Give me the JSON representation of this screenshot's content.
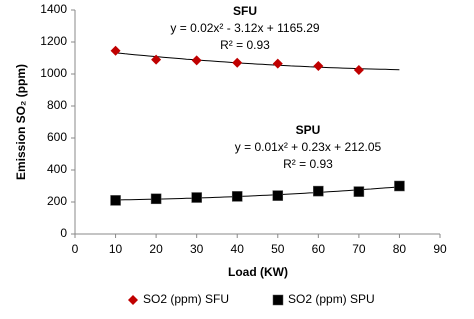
{
  "chart_data": {
    "type": "scatter",
    "x_label": "Load (KW)",
    "y_label": "Emission SO₂ (ppm)",
    "xlim": [
      0,
      90
    ],
    "xticks": [
      0,
      10,
      20,
      30,
      40,
      50,
      60,
      70,
      80,
      90
    ],
    "ylim": [
      0,
      1400
    ],
    "yticks": [
      0,
      200,
      400,
      600,
      800,
      1000,
      1200,
      1400
    ],
    "grid": false,
    "trendline": "poly2",
    "legend": "bottom",
    "series": [
      {
        "name": "SO2 (ppm) SFU",
        "color": "#c00000",
        "marker": "diamond",
        "x": [
          10,
          20,
          30,
          40,
          50,
          60,
          70
        ],
        "values": [
          1145,
          1090,
          1085,
          1070,
          1065,
          1050,
          1025
        ]
      },
      {
        "name": "SO2 (ppm) SPU",
        "color": "#000000",
        "marker": "square",
        "x": [
          10,
          20,
          30,
          40,
          50,
          60,
          70,
          80
        ],
        "values": [
          210,
          220,
          228,
          235,
          240,
          268,
          265,
          300
        ]
      }
    ],
    "annotations": [
      {
        "title": "SFU",
        "equation": "y = 0.02x² - 3.12x + 1165.29",
        "r2": "R² = 0.93"
      },
      {
        "title": "SPU",
        "equation": "y = 0.01x² + 0.23x + 212.05",
        "r2": "R² = 0.93"
      }
    ]
  }
}
